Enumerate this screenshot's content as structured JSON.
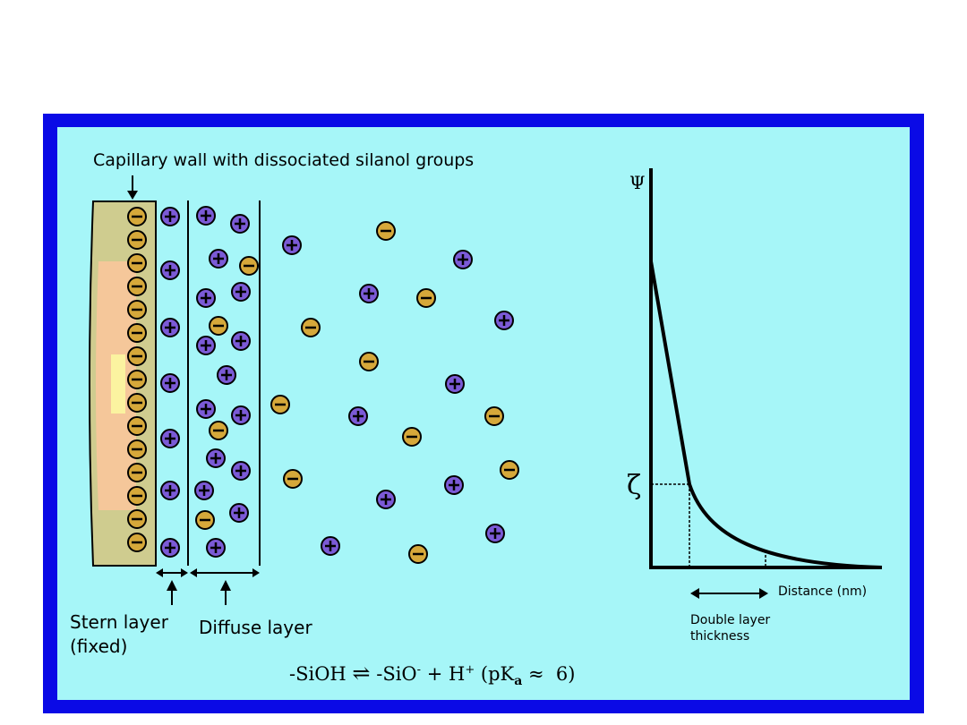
{
  "labels": {
    "capillary": "Capillary wall with dissociated silanol groups",
    "stern_1": "Stern layer",
    "stern_2": "(fixed)",
    "diffuse": "Diffuse layer",
    "distance": "Distance (nm)",
    "double_1": "Double layer",
    "double_2": "thickness",
    "psi": "Ψ",
    "zeta": "ζ"
  },
  "equation": {
    "left": "-SiOH",
    "arrow": "⇌",
    "right": "-SiO",
    "right_sup": "-",
    "plus": " + H",
    "h_sup": "+",
    "pk_open": " (pK",
    "pk_sub": "a",
    "pk_rest": " ≈  6)"
  },
  "colors": {
    "frame": "#0a0ae6",
    "background": "#a6f6f8",
    "cation": "#7b5ad6",
    "anion": "#d6a83a",
    "wall_outer": "#cfcc8f",
    "wall_inner": "#f5c79a",
    "wall_highlight": "#fbf3a0"
  },
  "ion_types": {
    "cation": "⊕",
    "anion": "⊖"
  }
}
